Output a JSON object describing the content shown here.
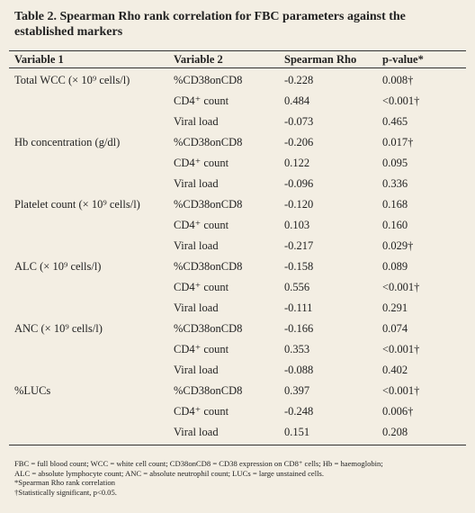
{
  "title": "Table 2. Spearman Rho rank correlation for FBC parameters against the established markers",
  "table": {
    "header": [
      "Variable 1",
      "Variable 2",
      "Spearman Rho",
      "p-value*"
    ],
    "groups": [
      {
        "variable1": "Total WCC (× 10⁹ cells/l)",
        "rows": [
          [
            "%CD38onCD8",
            "-0.228",
            "0.008†"
          ],
          [
            "CD4⁺ count",
            "0.484",
            "<0.001†"
          ],
          [
            "Viral load",
            "-0.073",
            "0.465"
          ]
        ]
      },
      {
        "variable1": "Hb concentration (g/dl)",
        "rows": [
          [
            "%CD38onCD8",
            "-0.206",
            "0.017†"
          ],
          [
            "CD4⁺ count",
            "0.122",
            "0.095"
          ],
          [
            "Viral load",
            "-0.096",
            "0.336"
          ]
        ]
      },
      {
        "variable1": "Platelet count (× 10⁹ cells/l)",
        "rows": [
          [
            "%CD38onCD8",
            "-0.120",
            "0.168"
          ],
          [
            "CD4⁺ count",
            "0.103",
            "0.160"
          ],
          [
            "Viral load",
            "-0.217",
            "0.029†"
          ]
        ]
      },
      {
        "variable1": "ALC (× 10⁹ cells/l)",
        "rows": [
          [
            "%CD38onCD8",
            "-0.158",
            "0.089"
          ],
          [
            "CD4⁺ count",
            "0.556",
            "<0.001†"
          ],
          [
            "Viral load",
            "-0.111",
            "0.291"
          ]
        ]
      },
      {
        "variable1": "ANC (× 10⁹ cells/l)",
        "rows": [
          [
            "%CD38onCD8",
            "-0.166",
            "0.074"
          ],
          [
            "CD4⁺ count",
            "0.353",
            "<0.001†"
          ],
          [
            "Viral load",
            "-0.088",
            "0.402"
          ]
        ]
      },
      {
        "variable1": "%LUCs",
        "rows": [
          [
            "%CD38onCD8",
            "0.397",
            "<0.001†"
          ],
          [
            "CD4⁺ count",
            "-0.248",
            "0.006†"
          ],
          [
            "Viral load",
            "0.151",
            "0.208"
          ]
        ]
      }
    ]
  },
  "footnotes": [
    "FBC = full blood count; WCC = white cell count; CD38onCD8 = CD38 expression on CD8⁺ cells; Hb = haemoglobin;",
    "ALC = absolute lymphocyte count; ANC = absolute neutrophil count; LUCs = large unstained cells.",
    "*Spearman Rho rank correlation",
    "†Statistically significant, p<0.05."
  ]
}
